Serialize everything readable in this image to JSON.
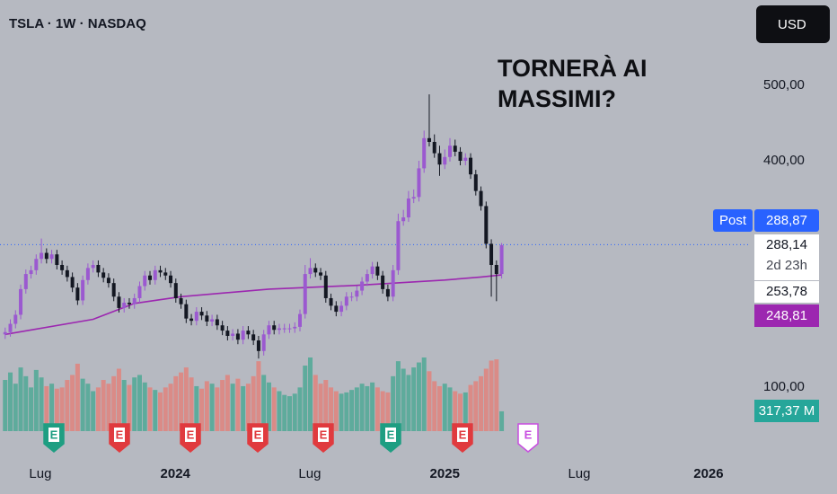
{
  "chart_data": {
    "type": "candlestick",
    "title": "TSLA · 1W · NASDAQ",
    "currency": "USD",
    "annotation": [
      "TORNERÀ AI",
      "MASSIMI?"
    ],
    "up_color": "#9b59d0",
    "down_color": "#131722",
    "xlim": [
      -1,
      144
    ],
    "xticks": [
      {
        "value": 6.8,
        "label": "Lug"
      },
      {
        "value": 32.9,
        "label": "2024"
      },
      {
        "value": 58.9,
        "label": "Lug"
      },
      {
        "value": 85,
        "label": "2025"
      },
      {
        "value": 111,
        "label": "Lug"
      },
      {
        "value": 136,
        "label": "2026"
      }
    ],
    "ylim": [
      24,
      613
    ],
    "yticks": [
      {
        "value": 100,
        "label": "100,00"
      },
      {
        "value": 400,
        "label": "400,00"
      },
      {
        "value": 500,
        "label": "500,00"
      }
    ],
    "open": [
      170,
      173,
      184,
      196,
      230,
      250,
      255,
      270,
      278,
      270,
      276,
      262,
      255,
      246,
      232,
      215,
      242,
      258,
      262,
      252,
      245,
      238,
      220,
      205,
      212,
      210,
      218,
      234,
      248,
      242,
      255,
      252,
      248,
      238,
      218,
      210,
      191,
      188,
      200,
      195,
      187,
      190,
      182,
      175,
      168,
      171,
      163,
      175,
      170,
      162,
      148,
      170,
      182,
      176,
      178,
      178,
      178,
      180,
      197,
      250,
      258,
      252,
      248,
      218,
      208,
      200,
      208,
      220,
      220,
      228,
      240,
      250,
      260,
      248,
      230,
      220,
      255,
      320,
      325,
      350,
      352,
      390,
      430,
      425,
      410,
      395,
      405,
      420,
      412,
      400,
      404,
      382,
      360,
      340,
      290,
      262,
      250
    ],
    "high": [
      179,
      190,
      202,
      236,
      256,
      261,
      276,
      297,
      284,
      282,
      282,
      268,
      261,
      252,
      238,
      248,
      264,
      268,
      268,
      258,
      251,
      244,
      226,
      218,
      218,
      224,
      240,
      254,
      254,
      261,
      261,
      258,
      254,
      244,
      224,
      216,
      197,
      206,
      206,
      201,
      196,
      196,
      188,
      181,
      177,
      177,
      181,
      181,
      176,
      168,
      176,
      188,
      188,
      184,
      184,
      184,
      186,
      203,
      262,
      271,
      264,
      258,
      254,
      224,
      214,
      214,
      226,
      226,
      234,
      246,
      256,
      266,
      266,
      254,
      236,
      262,
      330,
      335,
      360,
      362,
      400,
      440,
      488,
      435,
      420,
      415,
      430,
      428,
      418,
      410,
      410,
      388,
      366,
      346,
      296,
      268,
      291
    ],
    "low": [
      164,
      167,
      178,
      190,
      224,
      244,
      249,
      264,
      264,
      264,
      256,
      249,
      240,
      226,
      209,
      209,
      236,
      252,
      246,
      239,
      232,
      214,
      199,
      199,
      204,
      204,
      212,
      228,
      236,
      236,
      246,
      242,
      232,
      212,
      204,
      185,
      182,
      182,
      189,
      181,
      181,
      176,
      169,
      162,
      162,
      157,
      157,
      164,
      156,
      138,
      142,
      164,
      170,
      170,
      172,
      172,
      172,
      174,
      191,
      244,
      246,
      242,
      212,
      202,
      194,
      194,
      202,
      214,
      214,
      222,
      234,
      244,
      242,
      224,
      214,
      214,
      249,
      314,
      319,
      344,
      346,
      384,
      419,
      404,
      380,
      389,
      399,
      406,
      394,
      394,
      376,
      354,
      334,
      284,
      220,
      214,
      244
    ],
    "close": [
      173,
      184,
      196,
      230,
      250,
      255,
      270,
      278,
      270,
      276,
      262,
      255,
      246,
      232,
      215,
      242,
      258,
      262,
      252,
      245,
      238,
      220,
      205,
      212,
      210,
      218,
      234,
      248,
      242,
      255,
      252,
      248,
      238,
      218,
      210,
      191,
      188,
      200,
      195,
      187,
      190,
      182,
      175,
      168,
      171,
      163,
      175,
      170,
      162,
      148,
      170,
      182,
      176,
      178,
      178,
      178,
      180,
      197,
      250,
      258,
      252,
      248,
      218,
      208,
      200,
      208,
      220,
      220,
      228,
      240,
      250,
      260,
      248,
      230,
      220,
      255,
      320,
      325,
      350,
      352,
      390,
      430,
      425,
      410,
      395,
      405,
      420,
      412,
      400,
      404,
      382,
      360,
      340,
      290,
      262,
      250,
      288.14
    ],
    "close_label": "288,14",
    "countdown": "2d 23h",
    "prev_label": "253,78",
    "last_price": {
      "value": 288.87,
      "label": "288,87",
      "tag": "Post"
    },
    "ma": {
      "color": "#9c27b0",
      "x": [
        0,
        17,
        25,
        34,
        51,
        68,
        85,
        92,
        96
      ],
      "values": [
        170,
        190,
        211,
        220,
        230,
        235,
        242,
        246,
        248.81
      ],
      "last_label": "248,81"
    },
    "volume": {
      "up_color": "#4fa895",
      "down_color": "#e0827c",
      "last_label": "317,37 M",
      "values": [
        820,
        940,
        760,
        1020,
        880,
        700,
        980,
        860,
        720,
        760,
        680,
        700,
        820,
        900,
        1080,
        840,
        760,
        640,
        700,
        820,
        760,
        880,
        1000,
        820,
        740,
        860,
        900,
        780,
        700,
        660,
        620,
        700,
        760,
        880,
        940,
        1020,
        860,
        720,
        680,
        800,
        760,
        700,
        820,
        900,
        760,
        840,
        720,
        760,
        880,
        1120,
        900,
        780,
        700,
        640,
        580,
        560,
        600,
        700,
        1050,
        1180,
        900,
        760,
        820,
        700,
        640,
        600,
        620,
        660,
        700,
        760,
        720,
        780,
        700,
        640,
        620,
        880,
        1120,
        1000,
        900,
        1020,
        1100,
        1180,
        960,
        800,
        720,
        760,
        700,
        640,
        600,
        620,
        740,
        800,
        880,
        1000,
        1130,
        1150,
        317.37
      ]
    },
    "earnings": [
      "E",
      "E",
      "E",
      "E",
      "E",
      "E",
      "E",
      "E"
    ]
  }
}
